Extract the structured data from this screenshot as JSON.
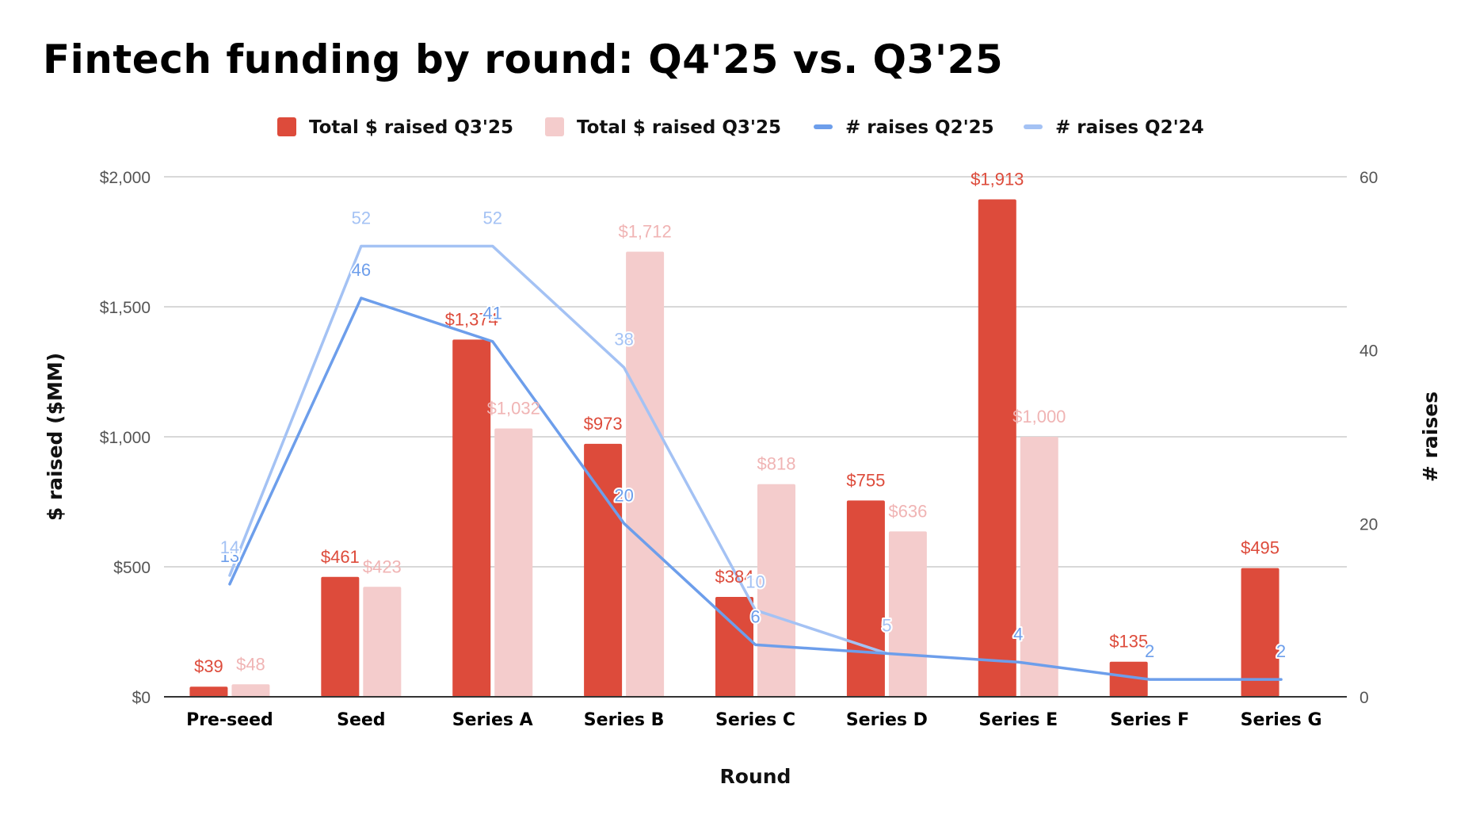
{
  "chart_data": {
    "type": "bar",
    "title": "Fintech funding by round: Q4'25 vs. Q3'25",
    "xlabel": "Round",
    "ylabel": "$ raised ($MM)",
    "y2label": "# raises",
    "ylim": [
      0,
      2000
    ],
    "y2lim": [
      0,
      60
    ],
    "yticks": [
      "$0",
      "$500",
      "$1,000",
      "$1,500",
      "$2,000"
    ],
    "y2ticks": [
      "0",
      "20",
      "40",
      "60"
    ],
    "grid": true,
    "legend_position": "top",
    "categories": [
      "Pre-seed",
      "Seed",
      "Series A",
      "Series B",
      "Series C",
      "Series D",
      "Series E",
      "Series F",
      "Series G"
    ],
    "series": [
      {
        "name": "Total $ raised Q3'25",
        "kind": "bar",
        "axis": "left",
        "color": "#dd4b3b",
        "values": [
          39,
          461,
          1374,
          973,
          384,
          755,
          1913,
          135,
          495
        ],
        "labels": [
          "$39",
          "$461",
          "$1,374",
          "$973",
          "$384",
          "$755",
          "$1,913",
          "$135",
          "$495"
        ]
      },
      {
        "name": "Total $ raised Q3'25",
        "kind": "bar",
        "axis": "left",
        "color": "#f4cccc",
        "values": [
          48,
          423,
          1032,
          1712,
          818,
          636,
          1000,
          null,
          null
        ],
        "labels": [
          "$48",
          "$423",
          "$1,032",
          "$1,712",
          "$818",
          "$636",
          "$1,000",
          "",
          ""
        ]
      },
      {
        "name": "# raises Q2'25",
        "kind": "line",
        "axis": "right",
        "color": "#6d9eeb",
        "values": [
          13,
          46,
          41,
          20,
          6,
          5,
          4,
          2,
          2
        ],
        "labels": [
          "13",
          "46",
          "41",
          "20",
          "6",
          "5",
          "4",
          "2",
          "2"
        ]
      },
      {
        "name": "# raises Q2'24",
        "kind": "line",
        "axis": "right",
        "color": "#a4c2f4",
        "values": [
          14,
          52,
          52,
          38,
          10,
          5,
          null,
          null,
          null
        ],
        "labels": [
          "14",
          "52",
          "52",
          "38",
          "10",
          "5",
          "",
          "",
          ""
        ]
      }
    ]
  }
}
